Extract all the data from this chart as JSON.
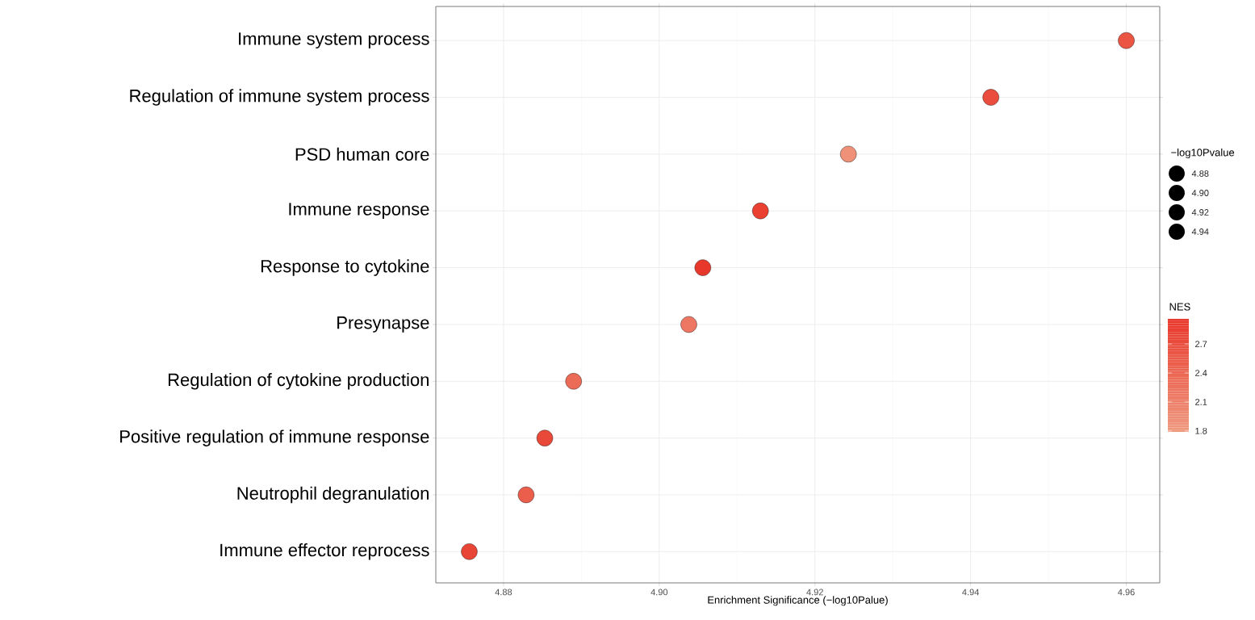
{
  "chart_data": {
    "type": "bubble",
    "orientation": "horizontal",
    "xlabel": "Enrichment Significance (−log10Palue)",
    "legend_title": "−log10Pvalue",
    "clabel": "NES",
    "categories": [
      "Immune system process",
      "Regulation of immune system process",
      "PSD human core",
      "Immune response",
      "Response to cytokine",
      "Presynapse",
      "Regulation of cytokine production",
      "Positive regulation of immune response",
      "Neutrophil degranulation",
      "Immune effector reprocess"
    ],
    "values": [
      4.96,
      4.9426,
      4.9243,
      4.913,
      4.9056,
      4.9038,
      4.889,
      4.8853,
      4.8829,
      4.8756
    ],
    "sizes": [
      4.96,
      4.9426,
      4.9243,
      4.913,
      4.9056,
      4.9038,
      4.889,
      4.8853,
      4.8829,
      4.8756
    ],
    "size_legend": [
      4.88,
      {
        "value": 4.9,
        "label": "4.90"
      },
      4.92,
      4.94
    ],
    "cvalues": [
      2.6,
      2.7,
      1.9,
      2.85,
      2.95,
      2.2,
      2.35,
      2.75,
      2.5,
      2.8
    ],
    "clim": [
      1.79,
      2.96
    ],
    "cticks": [
      1.8,
      2.1,
      2.4,
      2.7
    ],
    "xlim": [
      4.8713,
      4.9643
    ],
    "xticks": [
      4.88,
      {
        "value": 4.9,
        "label": "4.90"
      },
      4.92,
      4.94,
      4.96
    ],
    "grid": true
  }
}
